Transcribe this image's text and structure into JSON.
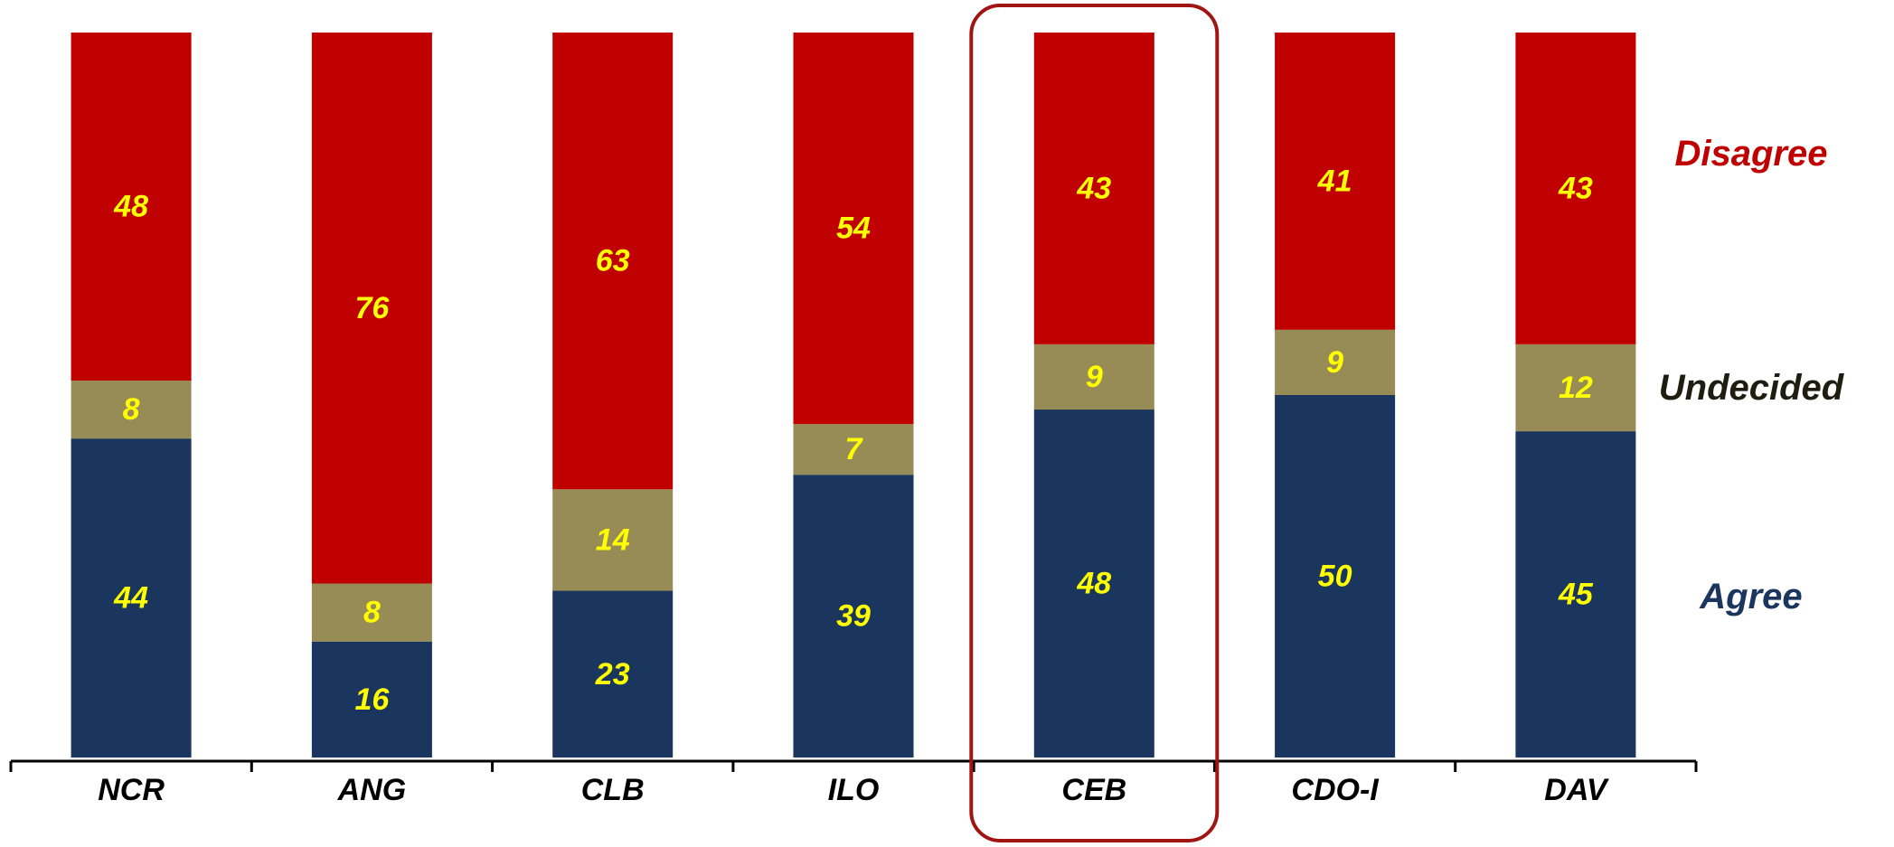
{
  "chart_data": {
    "type": "bar",
    "stacked": true,
    "categories": [
      "NCR",
      "ANG",
      "CLB",
      "ILO",
      "CEB",
      "CDO-I",
      "DAV"
    ],
    "series": [
      {
        "name": "Agree",
        "values": [
          44,
          16,
          23,
          39,
          48,
          50,
          45
        ],
        "color": "#1a355e"
      },
      {
        "name": "Undecided",
        "values": [
          8,
          8,
          14,
          7,
          9,
          9,
          12
        ],
        "color": "#978c56"
      },
      {
        "name": "Disagree",
        "values": [
          48,
          76,
          63,
          54,
          43,
          41,
          43
        ],
        "color": "#c00000"
      }
    ],
    "legend_placement": "right",
    "label_color": "#ffff00",
    "highlighted_category": "CEB",
    "highlight_color": "#a01414",
    "ylim": [
      0,
      100
    ],
    "grid": false,
    "title": "",
    "xlabel": "",
    "ylabel": ""
  }
}
